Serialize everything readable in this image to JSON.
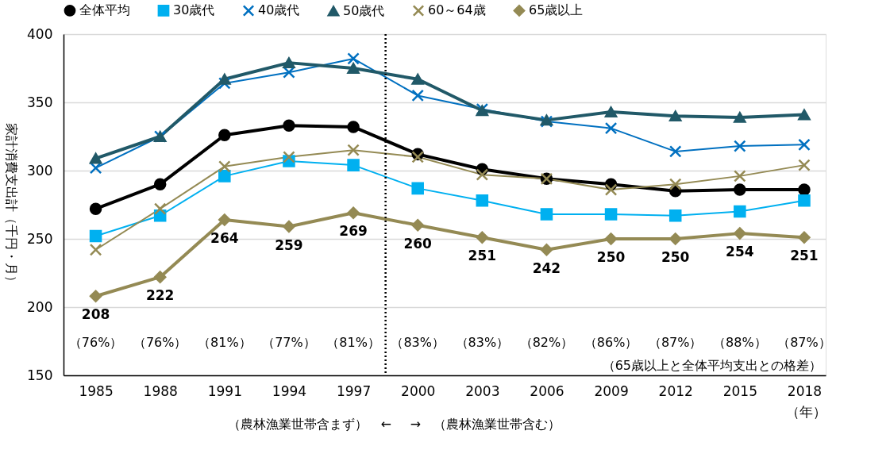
{
  "chart_data": {
    "type": "line",
    "ylabel": "家計消費支出計（千円・月）",
    "xlabel": "（年）",
    "x": [
      1985,
      1988,
      1991,
      1994,
      1997,
      2000,
      2003,
      2006,
      2009,
      2012,
      2015,
      2018
    ],
    "xlim": [
      1983.5,
      2019
    ],
    "xticks": [
      1985,
      1988,
      1991,
      1994,
      1997,
      2000,
      2003,
      2006,
      2009,
      2012,
      2015,
      2018
    ],
    "ylim": [
      150,
      400
    ],
    "yticks": [
      150,
      200,
      250,
      300,
      350,
      400
    ],
    "grid": "y",
    "legend": "top",
    "series": [
      {
        "name": "全体平均",
        "color": "#000000",
        "marker": "circle",
        "values": [
          272,
          290,
          326,
          333,
          332,
          312,
          301,
          294,
          290,
          285,
          286,
          286
        ]
      },
      {
        "name": "30歳代",
        "color": "#00b0f0",
        "marker": "square",
        "values": [
          252,
          267,
          296,
          307,
          304,
          287,
          278,
          268,
          268,
          267,
          270,
          278
        ]
      },
      {
        "name": "40歳代",
        "color": "#0070c0",
        "marker": "cross",
        "values": [
          302,
          325,
          364,
          372,
          382,
          355,
          345,
          336,
          331,
          314,
          318,
          319
        ]
      },
      {
        "name": "50歳代",
        "color": "#215968",
        "marker": "triangle",
        "values": [
          309,
          325,
          367,
          379,
          375,
          367,
          344,
          337,
          343,
          340,
          339,
          341
        ]
      },
      {
        "name": "60～64歳",
        "color": "#948a54",
        "marker": "cross",
        "values": [
          242,
          272,
          303,
          310,
          315,
          310,
          297,
          294,
          286,
          290,
          296,
          304
        ]
      },
      {
        "name": "65歳以上",
        "color": "#948a54",
        "marker": "diamond",
        "values": [
          208,
          222,
          264,
          259,
          269,
          260,
          251,
          242,
          250,
          250,
          254,
          251
        ],
        "value_labels": [
          "208",
          "222",
          "264",
          "259",
          "269",
          "260",
          "251",
          "242",
          "250",
          "250",
          "254",
          "251"
        ]
      }
    ],
    "ref_lines": [
      {
        "axis": "x",
        "value": 1998.5,
        "color": "#000000",
        "line_style": "dotted"
      }
    ],
    "annotations": [
      "（76%）",
      "（76%）",
      "（81%）",
      "（77%）",
      "（81%）",
      "（83%）",
      "（83%）",
      "（82%）",
      "（86%）",
      "（87%）",
      "（88%）",
      "（87%）",
      "（65歳以上と全体平均支出との格差）",
      "（農林漁業世帯含まず）　←",
      "→　（農林漁業世帯含む）"
    ]
  }
}
